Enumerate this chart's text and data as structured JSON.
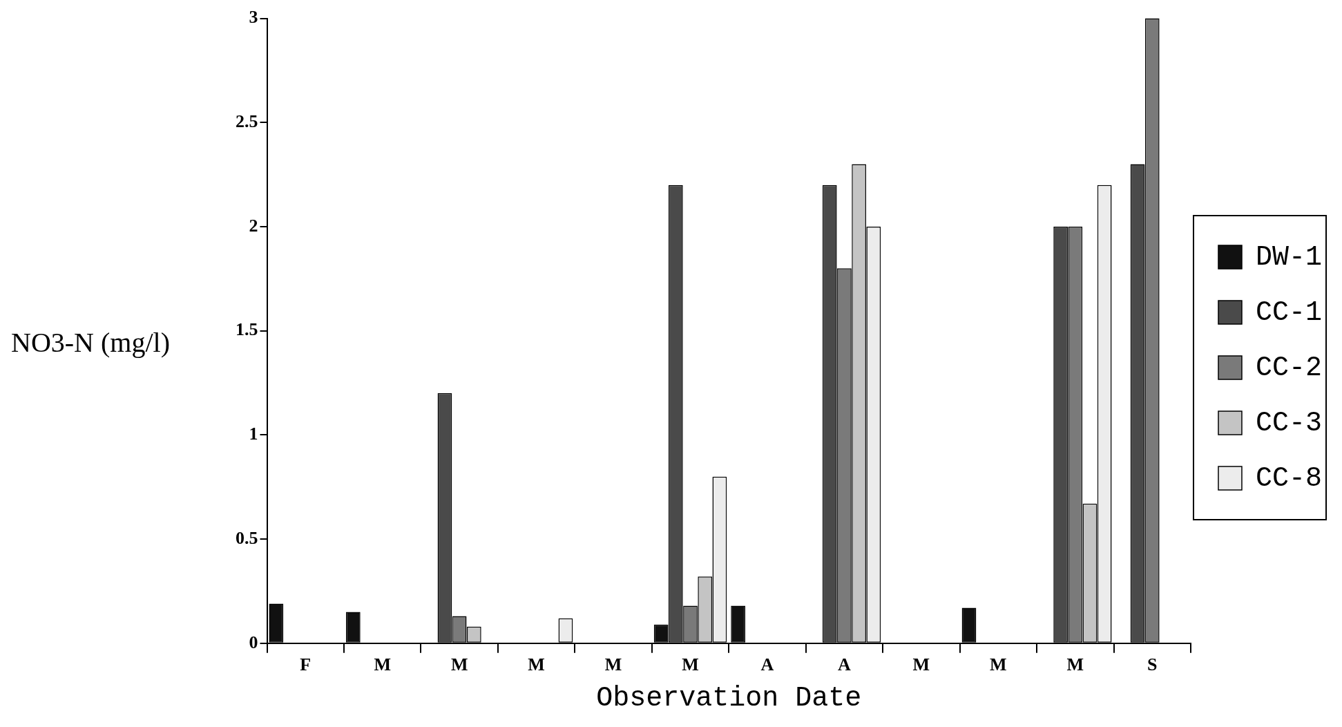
{
  "chart_data": {
    "type": "bar",
    "xlabel": "Observation Date",
    "ylabel": "NO3-N (mg/l)",
    "categories": [
      "F",
      "M",
      "M",
      "M",
      "M",
      "M",
      "A",
      "A",
      "M",
      "M",
      "M",
      "S"
    ],
    "series": [
      {
        "name": "DW-1",
        "color": "#111111",
        "values": [
          0.19,
          0.15,
          null,
          null,
          null,
          0.09,
          0.18,
          null,
          null,
          0.17,
          null,
          null
        ]
      },
      {
        "name": "CC-1",
        "color": "#4a4a4a",
        "values": [
          null,
          null,
          1.2,
          null,
          null,
          2.2,
          null,
          2.2,
          null,
          null,
          2.0,
          2.3
        ]
      },
      {
        "name": "CC-2",
        "color": "#7a7a7a",
        "values": [
          null,
          null,
          0.13,
          null,
          null,
          0.18,
          null,
          1.8,
          null,
          null,
          2.0,
          3.0
        ]
      },
      {
        "name": "CC-3",
        "color": "#c4c4c4",
        "values": [
          null,
          null,
          0.08,
          null,
          null,
          0.32,
          null,
          2.3,
          null,
          null,
          0.67,
          null
        ]
      },
      {
        "name": "CC-8",
        "color": "#ececec",
        "values": [
          null,
          null,
          null,
          0.12,
          null,
          0.8,
          null,
          2.0,
          null,
          null,
          2.2,
          null
        ]
      }
    ],
    "ylim": [
      0,
      3
    ],
    "yticks": [
      0,
      0.5,
      1,
      1.5,
      2,
      2.5,
      3
    ],
    "grid": false,
    "legend": "right"
  }
}
